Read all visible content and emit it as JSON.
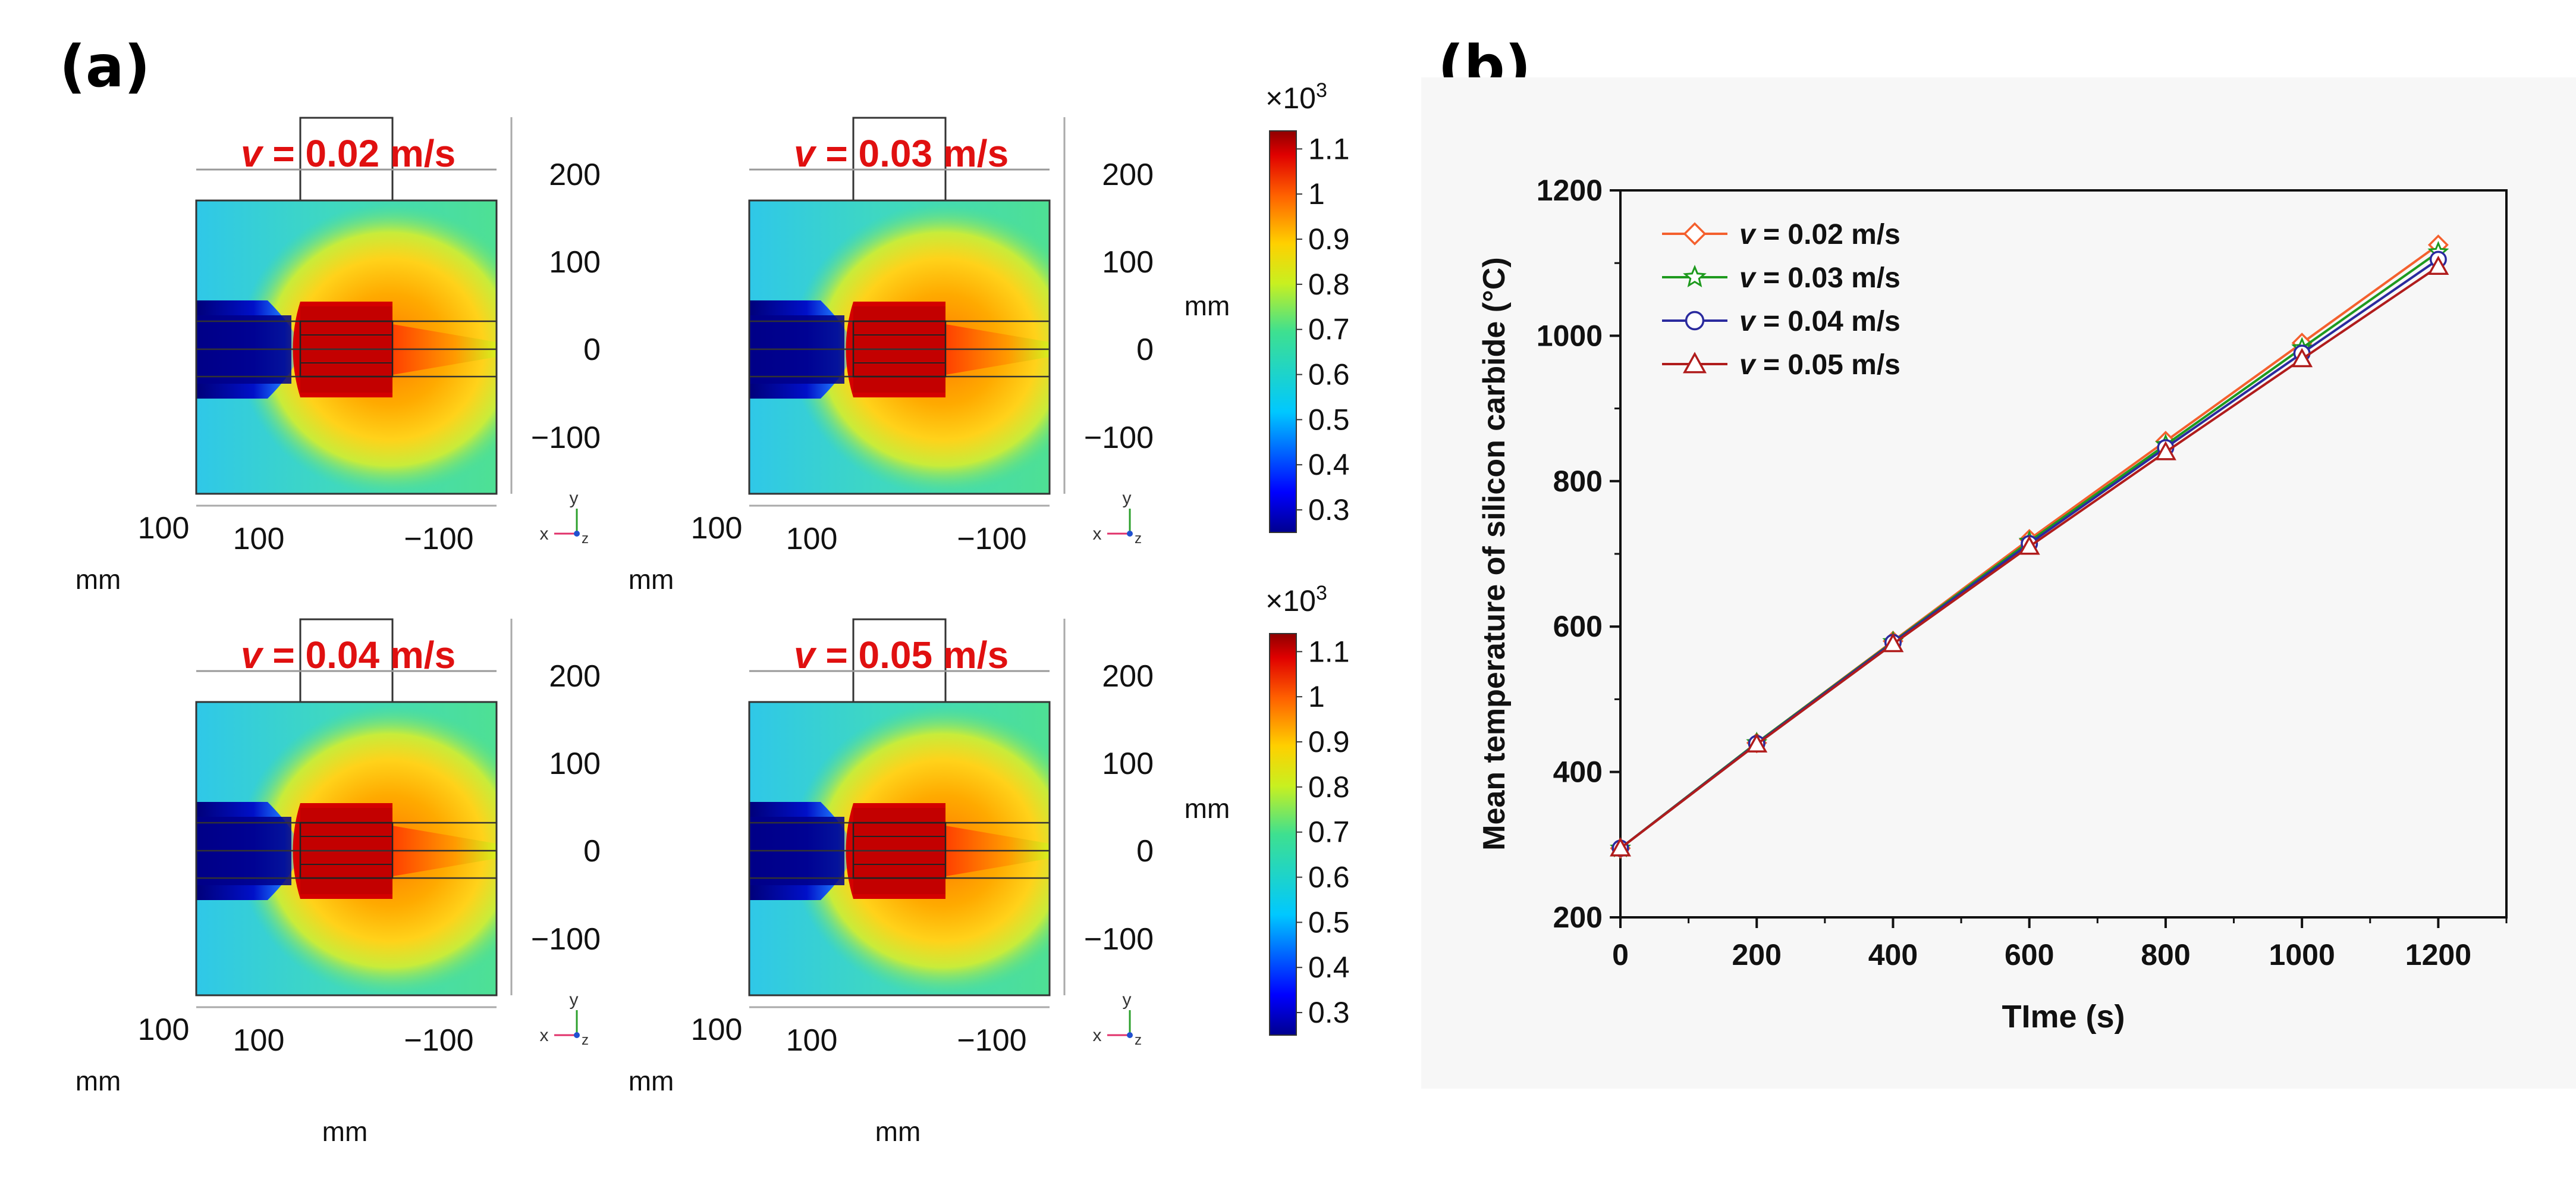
{
  "panels": {
    "a_label": "(a)",
    "b_label": "(b)"
  },
  "simulations": [
    {
      "v_label": "v",
      "v_value": " = 0.02 m/s"
    },
    {
      "v_label": "v",
      "v_value": " = 0.03 m/s"
    },
    {
      "v_label": "v",
      "v_value": " = 0.04 m/s"
    },
    {
      "v_label": "v",
      "v_value": " = 0.05 m/s"
    }
  ],
  "sim_axes": {
    "y_ticks": [
      "200",
      "100",
      "0",
      "−100"
    ],
    "x_ticks": [
      "100",
      "100",
      "−100"
    ],
    "unit": "mm",
    "triad_x": "x",
    "triad_y": "y",
    "triad_z": "z"
  },
  "colorbar": {
    "multiplier_base": "×10",
    "multiplier_exp": "3",
    "ticks": [
      "1.1",
      "1",
      "0.9",
      "0.8",
      "0.7",
      "0.6",
      "0.5",
      "0.4",
      "0.3"
    ],
    "unit": "mm",
    "range": [
      0.25,
      1.14
    ]
  },
  "chart_data": {
    "type": "line",
    "title": "",
    "xlabel": "TIme (s)",
    "ylabel_prefix": "Mean temperature of silicon carbide (",
    "ylabel_unit": "°C",
    "ylabel_suffix": ")",
    "xlim": [
      0,
      1300
    ],
    "ylim": [
      200,
      1200
    ],
    "x_ticks": [
      0,
      200,
      400,
      600,
      800,
      1000,
      1200
    ],
    "y_ticks": [
      200,
      400,
      600,
      800,
      1000,
      1200
    ],
    "x_tick_labels": [
      "0",
      "200",
      "400",
      "600",
      "800",
      "1000",
      "1200"
    ],
    "y_tick_labels": [
      "200",
      "400",
      "600",
      "800",
      "1000",
      "1200"
    ],
    "x": [
      0,
      200,
      400,
      600,
      800,
      1000,
      1200
    ],
    "legend_position": "top-left",
    "series": [
      {
        "name_italic": "v",
        "name_rest": " = 0.02 m/s",
        "marker": "diamond",
        "color": "#f4602e",
        "values": [
          295,
          440,
          580,
          720,
          855,
          990,
          1125
        ]
      },
      {
        "name_italic": "v",
        "name_rest": " = 0.03 m/s",
        "marker": "star",
        "color": "#1e9a1e",
        "values": [
          295,
          440,
          579,
          717,
          850,
          983,
          1115
        ]
      },
      {
        "name_italic": "v",
        "name_rest": " = 0.04 m/s",
        "marker": "circle",
        "color": "#2a2a9e",
        "values": [
          295,
          439,
          578,
          714,
          846,
          976,
          1105
        ]
      },
      {
        "name_italic": "v",
        "name_rest": " = 0.05 m/s",
        "marker": "triangle",
        "color": "#b01c1c",
        "values": [
          295,
          438,
          576,
          710,
          840,
          968,
          1095
        ]
      }
    ]
  }
}
